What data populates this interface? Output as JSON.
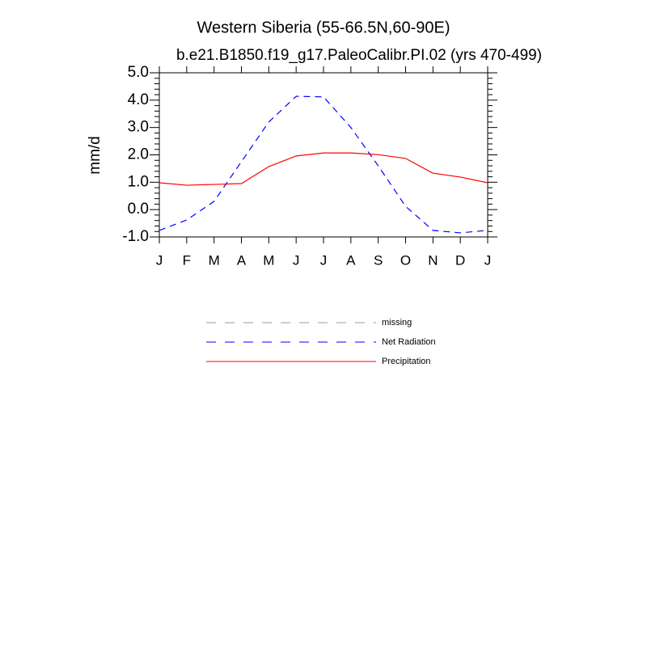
{
  "chart_data": {
    "type": "line",
    "title": "Western Siberia (55-66.5N,60-90E)",
    "subtitle": "b.e21.B1850.f19_g17.PaleoCalibr.PI.02 (yrs 470-499)",
    "y_label": "mm/d",
    "categories": [
      "J",
      "F",
      "M",
      "A",
      "M",
      "J",
      "J",
      "A",
      "S",
      "O",
      "N",
      "D",
      "J"
    ],
    "series": [
      {
        "name": "missing",
        "color": "#999999",
        "dash": true,
        "values": [
          null,
          null,
          null,
          null,
          null,
          null,
          null,
          null,
          null,
          null,
          null,
          null,
          null
        ]
      },
      {
        "name": "Net Radiation",
        "color": "#0000ff",
        "dash": true,
        "values": [
          -0.76,
          -0.38,
          0.3,
          1.75,
          3.2,
          4.14,
          4.12,
          3.0,
          1.6,
          0.12,
          -0.76,
          -0.85,
          -0.76
        ]
      },
      {
        "name": "Precipitation",
        "color": "#ff0000",
        "dash": false,
        "values": [
          0.98,
          0.89,
          0.92,
          0.95,
          1.57,
          1.96,
          2.07,
          2.07,
          2.01,
          1.87,
          1.33,
          1.19,
          0.98
        ]
      }
    ],
    "ylim": [
      -1,
      5
    ],
    "yticks": [
      {
        "value": -1,
        "label": "-1.0"
      },
      {
        "value": 0,
        "label": "0.0"
      },
      {
        "value": 1,
        "label": "1.0"
      },
      {
        "value": 2,
        "label": "2.0"
      },
      {
        "value": 3,
        "label": "3.0"
      },
      {
        "value": 4,
        "label": "4.0"
      },
      {
        "value": 5,
        "label": "5.0"
      }
    ],
    "grid": false
  }
}
